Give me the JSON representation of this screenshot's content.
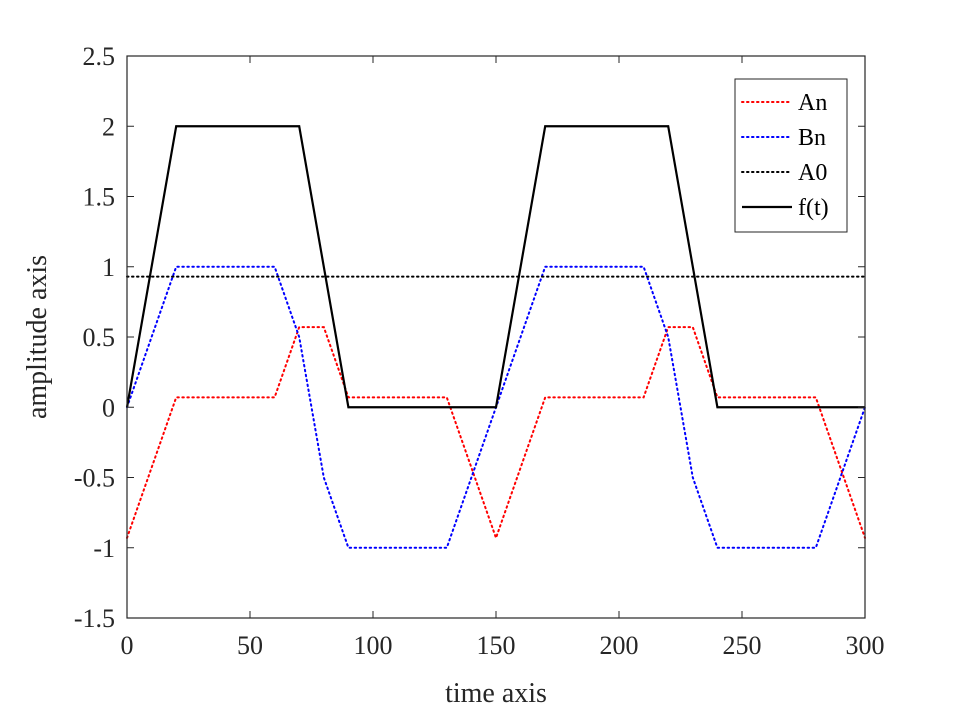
{
  "chart_data": {
    "type": "line",
    "xlabel": "time axis",
    "ylabel": "amplitude axis",
    "xlim": [
      0,
      300
    ],
    "ylim": [
      -1.5,
      2.5
    ],
    "xticks": [
      0,
      50,
      100,
      150,
      200,
      250,
      300
    ],
    "xtick_labels": [
      "0",
      "50",
      "100",
      "150",
      "200",
      "250",
      "300"
    ],
    "yticks": [
      -1.5,
      -1,
      -0.5,
      0,
      0.5,
      1,
      1.5,
      2,
      2.5
    ],
    "ytick_labels": [
      "-1.5",
      "-1",
      "-0.5",
      "0",
      "0.5",
      "1",
      "1.5",
      "2",
      "2.5"
    ],
    "grid": false,
    "legend_position": "top-right",
    "series": [
      {
        "name": "An",
        "color": "#ff0000",
        "style": "dotted",
        "points": [
          [
            0,
            -0.93
          ],
          [
            20,
            0.07
          ],
          [
            60,
            0.07
          ],
          [
            70,
            0.57
          ],
          [
            80,
            0.57
          ],
          [
            90,
            0.07
          ],
          [
            130,
            0.07
          ],
          [
            150,
            -0.93
          ],
          [
            170,
            0.07
          ],
          [
            210,
            0.07
          ],
          [
            220,
            0.57
          ],
          [
            230,
            0.57
          ],
          [
            240,
            0.07
          ],
          [
            280,
            0.07
          ],
          [
            300,
            -0.93
          ]
        ]
      },
      {
        "name": "Bn",
        "color": "#0000ff",
        "style": "dotted",
        "points": [
          [
            0,
            0
          ],
          [
            20,
            1
          ],
          [
            60,
            1
          ],
          [
            70,
            0.5
          ],
          [
            80,
            -0.5
          ],
          [
            90,
            -1
          ],
          [
            130,
            -1
          ],
          [
            150,
            0
          ],
          [
            170,
            1
          ],
          [
            210,
            1
          ],
          [
            220,
            0.5
          ],
          [
            230,
            -0.5
          ],
          [
            240,
            -1
          ],
          [
            280,
            -1
          ],
          [
            300,
            0
          ]
        ]
      },
      {
        "name": "A0",
        "color": "#000000",
        "style": "dotted",
        "points": [
          [
            0,
            0.93
          ],
          [
            300,
            0.93
          ]
        ]
      },
      {
        "name": "f(t)",
        "color": "#000000",
        "style": "solid",
        "points": [
          [
            0,
            0
          ],
          [
            20,
            2
          ],
          [
            70,
            2
          ],
          [
            90,
            0
          ],
          [
            150,
            0
          ],
          [
            170,
            2
          ],
          [
            220,
            2
          ],
          [
            240,
            0
          ],
          [
            300,
            0
          ]
        ]
      }
    ]
  }
}
